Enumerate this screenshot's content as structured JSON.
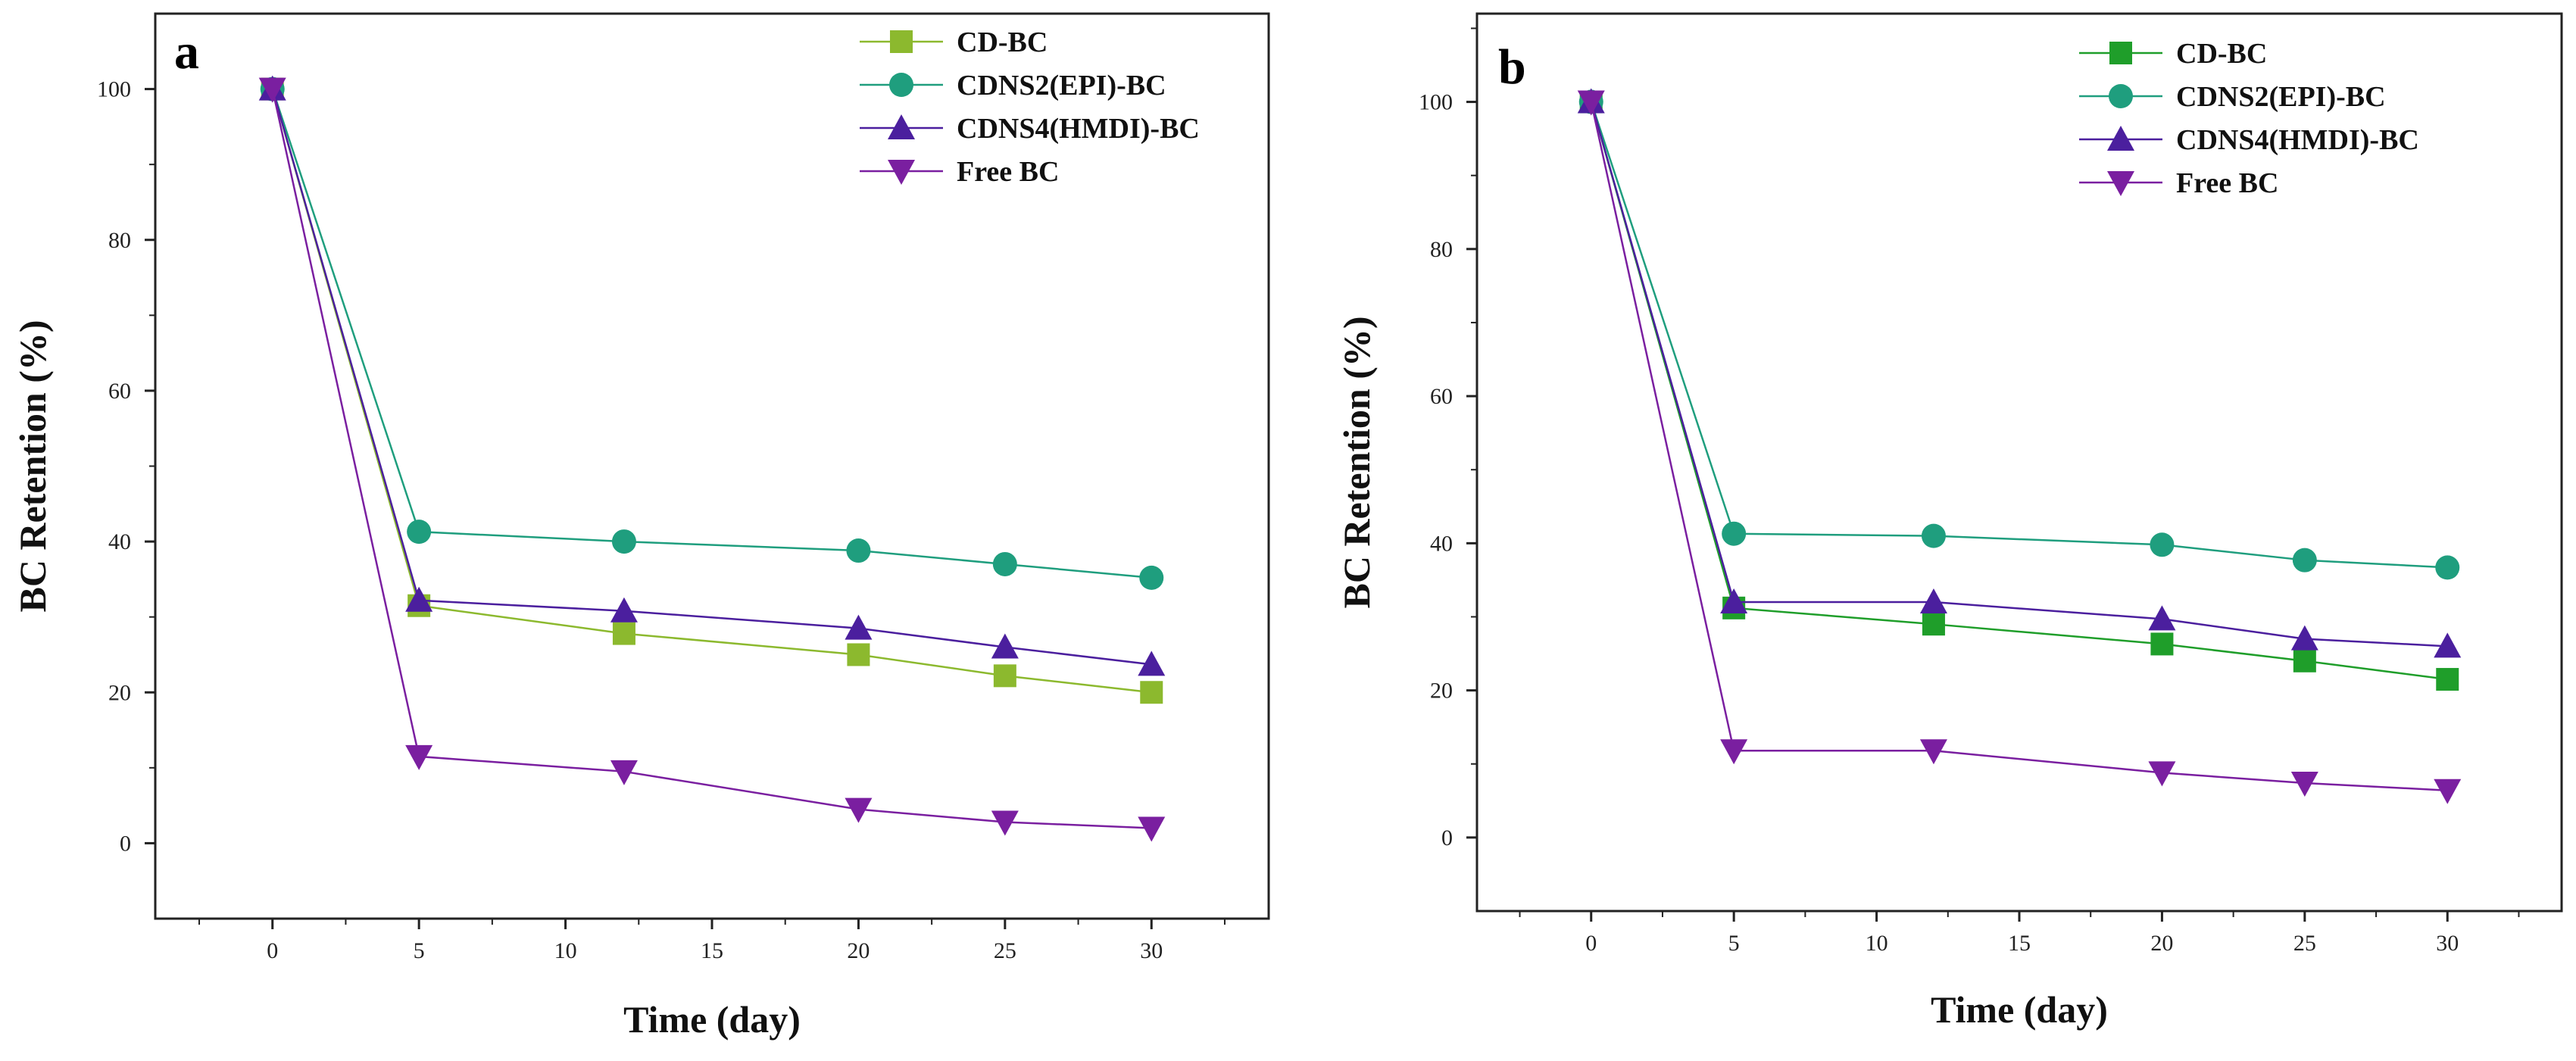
{
  "chart_data": [
    {
      "panel": "a",
      "type": "line",
      "xlabel": "Time (day)",
      "ylabel": "BC Retention (%)",
      "xlim": [
        -4,
        34
      ],
      "ylim": [
        -10,
        110
      ],
      "xticks": [
        0,
        5,
        10,
        15,
        20,
        25,
        30
      ],
      "yticks": [
        0,
        20,
        40,
        60,
        80,
        100
      ],
      "legend_position": "top-right",
      "grid": false,
      "x": [
        0,
        5,
        12,
        20,
        25,
        30
      ],
      "series": [
        {
          "name": "CD-BC",
          "marker": "square",
          "color": "#8cb92e",
          "values": [
            100,
            31.5,
            27.8,
            25.0,
            22.2,
            20.0
          ]
        },
        {
          "name": "CDNS2(EPI)-BC",
          "marker": "circle",
          "color": "#1f9e7e",
          "values": [
            100,
            41.3,
            40.0,
            38.8,
            37.0,
            35.2
          ]
        },
        {
          "name": "CDNS4(HMDI)-BC",
          "marker": "triangle-up",
          "color": "#4b1f9e",
          "values": [
            100,
            32.2,
            30.8,
            28.5,
            26.0,
            23.7
          ]
        },
        {
          "name": "Free BC",
          "marker": "triangle-down",
          "color": "#7a1fa0",
          "values": [
            100,
            11.5,
            9.5,
            4.5,
            2.8,
            2.0
          ]
        }
      ]
    },
    {
      "panel": "b",
      "type": "line",
      "xlabel": "Time (day)",
      "ylabel": "BC Retention (%)",
      "xlim": [
        -4,
        34
      ],
      "ylim": [
        -10,
        112
      ],
      "xticks": [
        0,
        5,
        10,
        15,
        20,
        25,
        30
      ],
      "yticks": [
        0,
        20,
        40,
        60,
        80,
        100
      ],
      "legend_position": "top-right",
      "grid": false,
      "x": [
        0,
        5,
        12,
        20,
        25,
        30
      ],
      "series": [
        {
          "name": "CD-BC",
          "marker": "square",
          "color": "#1f9e2a",
          "values": [
            100,
            31.2,
            29.0,
            26.3,
            24.0,
            21.5
          ]
        },
        {
          "name": "CDNS2(EPI)-BC",
          "marker": "circle",
          "color": "#1f9e7e",
          "values": [
            100,
            41.3,
            41.0,
            39.8,
            37.7,
            36.7
          ]
        },
        {
          "name": "CDNS4(HMDI)-BC",
          "marker": "triangle-up",
          "color": "#4b1f9e",
          "values": [
            100,
            32.0,
            32.0,
            29.7,
            27.0,
            26.0
          ]
        },
        {
          "name": "Free BC",
          "marker": "triangle-down",
          "color": "#7a1fa0",
          "values": [
            100,
            11.8,
            11.8,
            8.8,
            7.4,
            6.4
          ]
        }
      ]
    }
  ]
}
